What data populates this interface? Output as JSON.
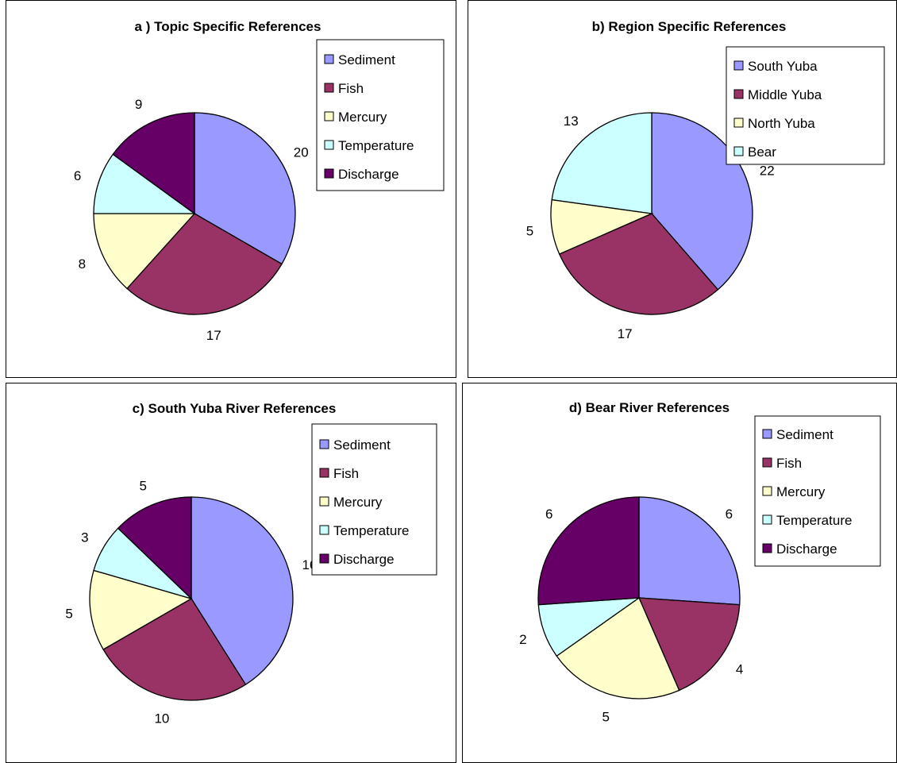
{
  "colors": {
    "Sediment": "#9999ff",
    "Fish": "#993366",
    "Mercury": "#ffffcc",
    "Temperature": "#ccffff",
    "Discharge": "#660066",
    "South Yuba": "#9999ff",
    "Middle Yuba": "#993366",
    "North Yuba": "#ffffcc",
    "Bear": "#ccffff"
  },
  "chart_data": [
    {
      "type": "pie",
      "title": "a ) Topic Specific References",
      "categories": [
        "Sediment",
        "Fish",
        "Mercury",
        "Temperature",
        "Discharge"
      ],
      "values": [
        20,
        17,
        8,
        6,
        9
      ],
      "legend": "right"
    },
    {
      "type": "pie",
      "title": "b) Region Specific References",
      "categories": [
        "South Yuba",
        "Middle Yuba",
        "North Yuba",
        "Bear"
      ],
      "values": [
        22,
        17,
        5,
        13
      ],
      "legend": "right"
    },
    {
      "type": "pie",
      "title": "c) South Yuba River References",
      "categories": [
        "Sediment",
        "Fish",
        "Mercury",
        "Temperature",
        "Discharge"
      ],
      "values": [
        16,
        10,
        5,
        3,
        5
      ],
      "legend": "right"
    },
    {
      "type": "pie",
      "title": "d) Bear River References",
      "categories": [
        "Sediment",
        "Fish",
        "Mercury",
        "Temperature",
        "Discharge"
      ],
      "values": [
        6,
        4,
        5,
        2,
        6
      ],
      "legend": "right"
    }
  ]
}
